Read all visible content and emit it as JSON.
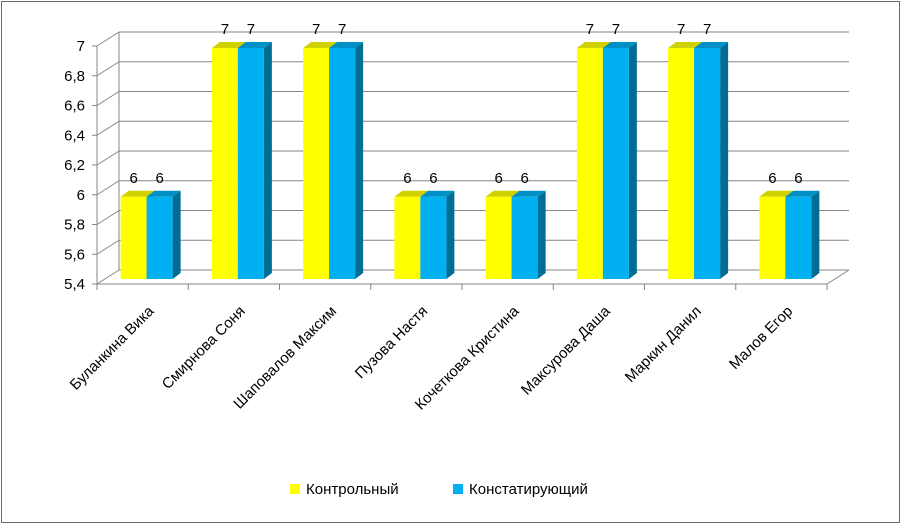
{
  "chart_data": {
    "type": "bar",
    "style": "3d-clustered-column",
    "categories": [
      "Буланкина Вика",
      "Смирнова Соня",
      "Шаповалов Максим",
      "Пузова Настя",
      "Кочеткова Кристина",
      "Максурова Даша",
      "Маркин Данил",
      "Малов Егор"
    ],
    "series": [
      {
        "name": "Контрольный",
        "values": [
          6,
          7,
          7,
          6,
          6,
          7,
          7,
          6
        ],
        "color": "#ffff00"
      },
      {
        "name": "Констатирующий",
        "values": [
          6,
          7,
          7,
          6,
          6,
          7,
          7,
          6
        ],
        "color": "#00b0f0"
      }
    ],
    "yticks": [
      "5,4",
      "5,6",
      "5,8",
      "6",
      "6,2",
      "6,4",
      "6,6",
      "6,8",
      "7"
    ],
    "ylim": [
      5.4,
      7
    ],
    "grid": true,
    "data_labels": true,
    "legend_position": "bottom",
    "title": "",
    "xlabel": "",
    "ylabel": ""
  }
}
